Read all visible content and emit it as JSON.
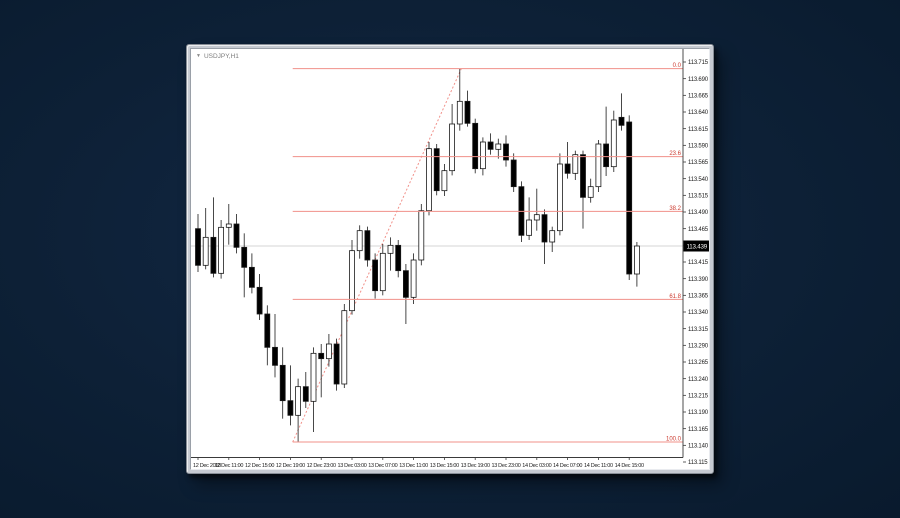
{
  "desktop": {
    "background_color": "#0d2036"
  },
  "window": {
    "symbol_label": "USDJPY,H1",
    "dropdown_icon": "▼"
  },
  "colors": {
    "bull_body": "#ffffff",
    "bear_body": "#000000",
    "candle_outline": "#1a1a1a",
    "fib_line": "#f19089",
    "fib_label": "#cc3b30",
    "current_price_line": "#d6d6d6",
    "badge_bg": "#000000",
    "badge_text": "#ffffff",
    "axis_text": "#1a1a1a",
    "axis_line": "#3a3a3a"
  },
  "chart_data": {
    "type": "candlestick",
    "symbol": "USDJPY",
    "timeframe": "H1",
    "current_price": 113.439,
    "current_price_label": "113.439",
    "y_axis": {
      "max": 113.715,
      "min": 113.115,
      "tick_step": 0.025,
      "tick_labels": [
        "113.715",
        "113.690",
        "113.665",
        "113.640",
        "113.615",
        "113.590",
        "113.565",
        "113.540",
        "113.515",
        "113.490",
        "113.465",
        "113.440",
        "113.415",
        "113.390",
        "113.365",
        "113.340",
        "113.315",
        "113.290",
        "113.265",
        "113.240",
        "113.215",
        "113.190",
        "113.165",
        "113.140",
        "113.115"
      ]
    },
    "x_axis": {
      "labels": [
        {
          "bar": 0,
          "text": "12 Dec 2018"
        },
        {
          "bar": 4,
          "text": "12 Dec 11:00"
        },
        {
          "bar": 8,
          "text": "12 Dec 15:00"
        },
        {
          "bar": 12,
          "text": "12 Dec 19:00"
        },
        {
          "bar": 16,
          "text": "12 Dec 23:00"
        },
        {
          "bar": 20,
          "text": "13 Dec 03:00"
        },
        {
          "bar": 24,
          "text": "13 Dec 07:00"
        },
        {
          "bar": 28,
          "text": "13 Dec 11:00"
        },
        {
          "bar": 32,
          "text": "13 Dec 15:00"
        },
        {
          "bar": 36,
          "text": "13 Dec 19:00"
        },
        {
          "bar": 40,
          "text": "13 Dec 23:00"
        },
        {
          "bar": 44,
          "text": "14 Dec 03:00"
        },
        {
          "bar": 48,
          "text": "14 Dec 07:00"
        },
        {
          "bar": 52,
          "text": "14 Dec 11:00"
        },
        {
          "bar": 56,
          "text": "14 Dec 15:00"
        }
      ]
    },
    "fibonacci": {
      "start_bar": 12.3,
      "levels": [
        {
          "label": "0.0",
          "price": 113.705
        },
        {
          "label": "23.6",
          "price": 113.573
        },
        {
          "label": "38.2",
          "price": 113.491
        },
        {
          "label": "61.8",
          "price": 113.359
        },
        {
          "label": "100.0",
          "price": 113.145
        }
      ],
      "trendline": {
        "from_bar": 12.3,
        "from_price": 113.145,
        "to_bar": 34.2,
        "to_price": 113.705
      }
    },
    "candles": [
      {
        "t": "12 Dec 07:00",
        "o": 113.465,
        "h": 113.487,
        "l": 113.4,
        "c": 113.41
      },
      {
        "t": "12 Dec 08:00",
        "o": 113.41,
        "h": 113.496,
        "l": 113.404,
        "c": 113.452
      },
      {
        "t": "12 Dec 09:00",
        "o": 113.452,
        "h": 113.512,
        "l": 113.392,
        "c": 113.398
      },
      {
        "t": "12 Dec 10:00",
        "o": 113.398,
        "h": 113.478,
        "l": 113.39,
        "c": 113.467
      },
      {
        "t": "12 Dec 11:00",
        "o": 113.467,
        "h": 113.502,
        "l": 113.441,
        "c": 113.472
      },
      {
        "t": "12 Dec 12:00",
        "o": 113.472,
        "h": 113.487,
        "l": 113.428,
        "c": 113.437
      },
      {
        "t": "12 Dec 13:00",
        "o": 113.437,
        "h": 113.458,
        "l": 113.362,
        "c": 113.407
      },
      {
        "t": "12 Dec 14:00",
        "o": 113.407,
        "h": 113.428,
        "l": 113.368,
        "c": 113.377
      },
      {
        "t": "12 Dec 15:00",
        "o": 113.377,
        "h": 113.397,
        "l": 113.328,
        "c": 113.337
      },
      {
        "t": "12 Dec 16:00",
        "o": 113.337,
        "h": 113.35,
        "l": 113.26,
        "c": 113.287
      },
      {
        "t": "12 Dec 17:00",
        "o": 113.287,
        "h": 113.337,
        "l": 113.242,
        "c": 113.26
      },
      {
        "t": "12 Dec 18:00",
        "o": 113.26,
        "h": 113.287,
        "l": 113.18,
        "c": 113.207
      },
      {
        "t": "12 Dec 19:00",
        "o": 113.207,
        "h": 113.26,
        "l": 113.17,
        "c": 113.185
      },
      {
        "t": "12 Dec 20:00",
        "o": 113.185,
        "h": 113.24,
        "l": 113.145,
        "c": 113.228
      },
      {
        "t": "12 Dec 21:00",
        "o": 113.228,
        "h": 113.25,
        "l": 113.196,
        "c": 113.206
      },
      {
        "t": "12 Dec 22:00",
        "o": 113.206,
        "h": 113.287,
        "l": 113.16,
        "c": 113.278
      },
      {
        "t": "12 Dec 23:00",
        "o": 113.278,
        "h": 113.292,
        "l": 113.212,
        "c": 113.27
      },
      {
        "t": "13 Dec 00:00",
        "o": 113.27,
        "h": 113.307,
        "l": 113.258,
        "c": 113.292
      },
      {
        "t": "13 Dec 01:00",
        "o": 113.292,
        "h": 113.3,
        "l": 113.222,
        "c": 113.232
      },
      {
        "t": "13 Dec 02:00",
        "o": 113.232,
        "h": 113.352,
        "l": 113.226,
        "c": 113.342
      },
      {
        "t": "13 Dec 03:00",
        "o": 113.342,
        "h": 113.448,
        "l": 113.336,
        "c": 113.432
      },
      {
        "t": "13 Dec 04:00",
        "o": 113.432,
        "h": 113.47,
        "l": 113.42,
        "c": 113.462
      },
      {
        "t": "13 Dec 05:00",
        "o": 113.462,
        "h": 113.468,
        "l": 113.408,
        "c": 113.418
      },
      {
        "t": "13 Dec 06:00",
        "o": 113.418,
        "h": 113.428,
        "l": 113.36,
        "c": 113.372
      },
      {
        "t": "13 Dec 07:00",
        "o": 113.372,
        "h": 113.442,
        "l": 113.365,
        "c": 113.428
      },
      {
        "t": "13 Dec 08:00",
        "o": 113.428,
        "h": 113.452,
        "l": 113.402,
        "c": 113.44
      },
      {
        "t": "13 Dec 09:00",
        "o": 113.44,
        "h": 113.448,
        "l": 113.392,
        "c": 113.402
      },
      {
        "t": "13 Dec 10:00",
        "o": 113.402,
        "h": 113.412,
        "l": 113.322,
        "c": 113.362
      },
      {
        "t": "13 Dec 11:00",
        "o": 113.362,
        "h": 113.428,
        "l": 113.352,
        "c": 113.418
      },
      {
        "t": "13 Dec 12:00",
        "o": 113.418,
        "h": 113.502,
        "l": 113.41,
        "c": 113.492
      },
      {
        "t": "13 Dec 13:00",
        "o": 113.492,
        "h": 113.595,
        "l": 113.485,
        "c": 113.585
      },
      {
        "t": "13 Dec 14:00",
        "o": 113.585,
        "h": 113.592,
        "l": 113.515,
        "c": 113.522
      },
      {
        "t": "13 Dec 15:00",
        "o": 113.522,
        "h": 113.562,
        "l": 113.514,
        "c": 113.552
      },
      {
        "t": "13 Dec 16:00",
        "o": 113.552,
        "h": 113.652,
        "l": 113.545,
        "c": 113.622
      },
      {
        "t": "13 Dec 17:00",
        "o": 113.622,
        "h": 113.705,
        "l": 113.612,
        "c": 113.656
      },
      {
        "t": "13 Dec 18:00",
        "o": 113.656,
        "h": 113.672,
        "l": 113.618,
        "c": 113.623
      },
      {
        "t": "13 Dec 19:00",
        "o": 113.623,
        "h": 113.63,
        "l": 113.548,
        "c": 113.555
      },
      {
        "t": "13 Dec 20:00",
        "o": 113.555,
        "h": 113.602,
        "l": 113.545,
        "c": 113.595
      },
      {
        "t": "13 Dec 21:00",
        "o": 113.595,
        "h": 113.608,
        "l": 113.576,
        "c": 113.584
      },
      {
        "t": "13 Dec 22:00",
        "o": 113.584,
        "h": 113.6,
        "l": 113.57,
        "c": 113.592
      },
      {
        "t": "13 Dec 23:00",
        "o": 113.592,
        "h": 113.605,
        "l": 113.558,
        "c": 113.568
      },
      {
        "t": "14 Dec 00:00",
        "o": 113.568,
        "h": 113.578,
        "l": 113.52,
        "c": 113.528
      },
      {
        "t": "14 Dec 01:00",
        "o": 113.528,
        "h": 113.536,
        "l": 113.445,
        "c": 113.455
      },
      {
        "t": "14 Dec 02:00",
        "o": 113.455,
        "h": 113.512,
        "l": 113.448,
        "c": 113.478
      },
      {
        "t": "14 Dec 03:00",
        "o": 113.478,
        "h": 113.525,
        "l": 113.462,
        "c": 113.486
      },
      {
        "t": "14 Dec 04:00",
        "o": 113.486,
        "h": 113.494,
        "l": 113.412,
        "c": 113.445
      },
      {
        "t": "14 Dec 05:00",
        "o": 113.445,
        "h": 113.468,
        "l": 113.43,
        "c": 113.462
      },
      {
        "t": "14 Dec 06:00",
        "o": 113.462,
        "h": 113.578,
        "l": 113.455,
        "c": 113.562
      },
      {
        "t": "14 Dec 07:00",
        "o": 113.562,
        "h": 113.595,
        "l": 113.54,
        "c": 113.548
      },
      {
        "t": "14 Dec 08:00",
        "o": 113.548,
        "h": 113.582,
        "l": 113.538,
        "c": 113.576
      },
      {
        "t": "14 Dec 09:00",
        "o": 113.576,
        "h": 113.582,
        "l": 113.465,
        "c": 113.512
      },
      {
        "t": "14 Dec 10:00",
        "o": 113.512,
        "h": 113.54,
        "l": 113.504,
        "c": 113.528
      },
      {
        "t": "14 Dec 11:00",
        "o": 113.528,
        "h": 113.598,
        "l": 113.52,
        "c": 113.592
      },
      {
        "t": "14 Dec 12:00",
        "o": 113.592,
        "h": 113.648,
        "l": 113.544,
        "c": 113.558
      },
      {
        "t": "14 Dec 13:00",
        "o": 113.558,
        "h": 113.642,
        "l": 113.55,
        "c": 113.628
      },
      {
        "t": "14 Dec 14:00",
        "o": 113.632,
        "h": 113.668,
        "l": 113.612,
        "c": 113.62
      },
      {
        "t": "14 Dec 15:00",
        "o": 113.625,
        "h": 113.635,
        "l": 113.388,
        "c": 113.397
      },
      {
        "t": "14 Dec 16:00",
        "o": 113.397,
        "h": 113.445,
        "l": 113.378,
        "c": 113.439
      }
    ]
  }
}
